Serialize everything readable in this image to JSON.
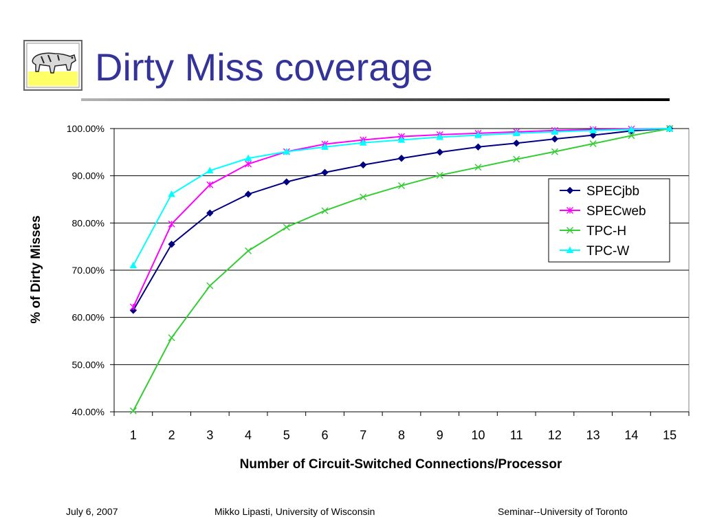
{
  "slide": {
    "title": "Dirty Miss coverage"
  },
  "footer": {
    "date": "July 6, 2007",
    "author": "Mikko Lipasti, University of Wisconsin",
    "venue": "Seminar--University of Toronto"
  },
  "colors": {
    "title": "#333399",
    "rule_dark": "#000000",
    "rule_light": "#b3b3b3"
  },
  "chart_data": {
    "type": "line",
    "title": "",
    "xlabel": "Number of Circuit-Switched Connections/Processor",
    "ylabel": "% of Dirty Misses",
    "x": [
      1,
      2,
      3,
      4,
      5,
      6,
      7,
      8,
      9,
      10,
      11,
      12,
      13,
      14,
      15
    ],
    "ylim": [
      0.4,
      1.0
    ],
    "yticks": [
      0.4,
      0.5,
      0.6,
      0.7,
      0.8,
      0.9,
      1.0
    ],
    "ytick_labels": [
      "40.00%",
      "50.00%",
      "60.00%",
      "70.00%",
      "80.00%",
      "90.00%",
      "100.00%"
    ],
    "grid": "horizontal",
    "legend_position": "right",
    "series": [
      {
        "name": "SPECjbb",
        "color": "#000080",
        "marker": "diamond",
        "values": [
          0.615,
          0.755,
          0.821,
          0.861,
          0.887,
          0.907,
          0.923,
          0.937,
          0.95,
          0.961,
          0.969,
          0.978,
          0.986,
          0.995,
          1.0
        ]
      },
      {
        "name": "SPECweb",
        "color": "#ff00ff",
        "marker": "star",
        "values": [
          0.622,
          0.798,
          0.881,
          0.925,
          0.951,
          0.967,
          0.976,
          0.983,
          0.987,
          0.99,
          0.993,
          0.996,
          0.998,
          0.999,
          1.0
        ]
      },
      {
        "name": "TPC-H",
        "color": "#33cc33",
        "marker": "x",
        "values": [
          0.402,
          0.557,
          0.667,
          0.741,
          0.791,
          0.826,
          0.855,
          0.879,
          0.901,
          0.918,
          0.935,
          0.951,
          0.968,
          0.985,
          1.0
        ]
      },
      {
        "name": "TPC-W",
        "color": "#00ffff",
        "marker": "triangle",
        "values": [
          0.71,
          0.861,
          0.911,
          0.937,
          0.951,
          0.961,
          0.97,
          0.976,
          0.982,
          0.986,
          0.99,
          0.993,
          0.996,
          0.998,
          1.0
        ]
      }
    ]
  }
}
